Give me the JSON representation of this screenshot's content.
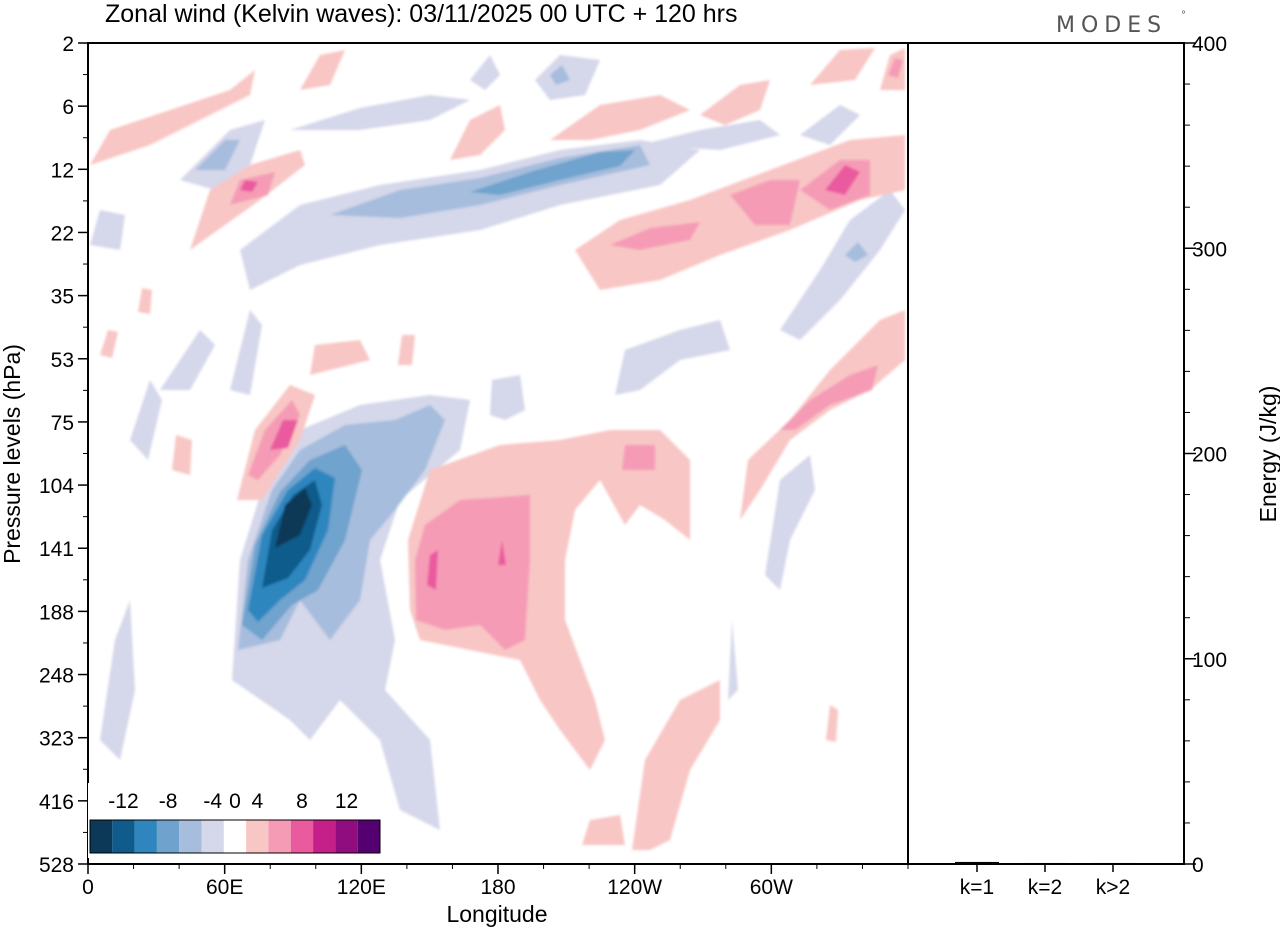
{
  "header": {
    "title": "Zonal wind (Kelvin waves):  03/11/2025  00 UTC  + 120 hrs",
    "logo": "MODES",
    "logo_mark": "°"
  },
  "chart_data": [
    {
      "type": "heatmap",
      "title": "Zonal wind (Kelvin waves):  03/11/2025  00 UTC  + 120 hrs",
      "xlabel": "Longitude",
      "ylabel": "Pressure levels (hPa)",
      "x_ticks": [
        "0",
        "60E",
        "120E",
        "180",
        "120W",
        "60W"
      ],
      "x_tick_values": [
        0,
        60,
        120,
        180,
        240,
        300
      ],
      "xlim": [
        0,
        360
      ],
      "y_ticks": [
        "2",
        "6",
        "12",
        "22",
        "35",
        "53",
        "75",
        "104",
        "141",
        "188",
        "248",
        "323",
        "416",
        "528"
      ],
      "y_scale": "model levels (top 2 hPa, bottom 528 hPa)",
      "colorbar": {
        "labels": [
          "-12",
          "-8",
          "-4",
          "0",
          "4",
          "8",
          "12"
        ],
        "bins": [
          -14,
          -12,
          -10,
          -8,
          -6,
          -4,
          -2,
          2,
          4,
          6,
          8,
          10,
          12,
          14
        ],
        "colors": [
          "#0c3957",
          "#0f5b8c",
          "#2f86bf",
          "#6fa3cd",
          "#a6bddd",
          "#d5d7ea",
          "#ffffff",
          "#f8c6c4",
          "#f59bb6",
          "#ea5a9e",
          "#c51f8a",
          "#8f0d7e",
          "#550070"
        ]
      },
      "features": [
        {
          "lon": 92,
          "level": "141",
          "value": -14
        },
        {
          "lon": 82,
          "level": "75",
          "value": 8
        },
        {
          "lon": 150,
          "level": "141",
          "value": 10
        },
        {
          "lon": 238,
          "level": "104",
          "value": 6
        },
        {
          "lon": 330,
          "level": "12",
          "value": 10
        },
        {
          "lon": 210,
          "level": "12",
          "value": -8
        },
        {
          "lon": 90,
          "level": "12",
          "value": 6
        },
        {
          "lon": 285,
          "level": "75",
          "value": 6
        }
      ]
    },
    {
      "type": "bar",
      "categories": [
        "k=1",
        "k=2",
        "k>2"
      ],
      "values": [
        1,
        0.5,
        0.5
      ],
      "ylabel": "Energy (J/kg)",
      "ylim": [
        0,
        400
      ],
      "y_ticks": [
        "0",
        "100",
        "200",
        "300",
        "400"
      ],
      "y_tick_values": [
        0,
        100,
        200,
        300,
        400
      ]
    }
  ]
}
